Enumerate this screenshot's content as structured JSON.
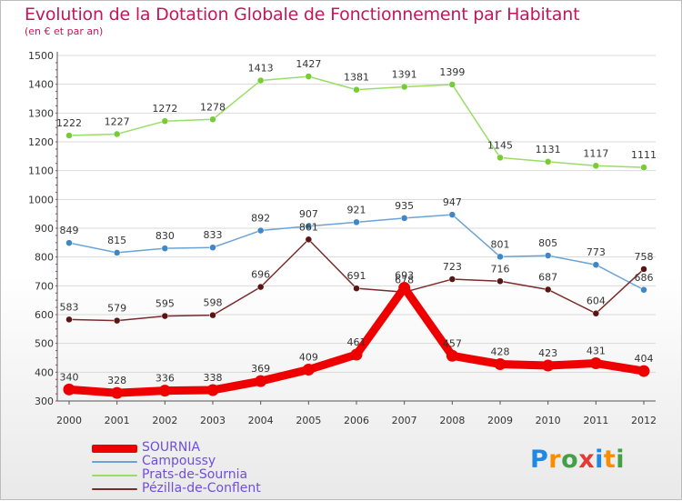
{
  "title": "Evolution de la Dotation Globale de Fonctionnement par Habitant",
  "subtitle": "(en € et par an)",
  "logo": {
    "text": "Proxiti",
    "letter_colors": [
      "#1e88e5",
      "#fb8c00",
      "#43a047",
      "#e53935",
      "#1e88e5",
      "#fb8c00",
      "#43a047"
    ]
  },
  "chart_data": {
    "type": "line",
    "title": "Evolution de la Dotation Globale de Fonctionnement par Habitant",
    "subtitle": "(en € et par an)",
    "xlabel": "",
    "ylabel": "",
    "x": [
      "2000",
      "2001",
      "2002",
      "2003",
      "2004",
      "2005",
      "2006",
      "2007",
      "2008",
      "2009",
      "2010",
      "2011",
      "2012"
    ],
    "ylim": [
      300,
      1500
    ],
    "yticks": [
      300,
      400,
      500,
      600,
      700,
      800,
      900,
      1000,
      1100,
      1200,
      1300,
      1400,
      1500
    ],
    "grid": true,
    "legend_position": "bottom-left",
    "series": [
      {
        "name": "Prats-de-Sournia",
        "color": "#99dd66",
        "marker_color": "#77cc33",
        "values": [
          1222,
          1227,
          1272,
          1278,
          1413,
          1427,
          1381,
          1391,
          1399,
          1145,
          1131,
          1117,
          1111
        ],
        "labels": [
          "1222",
          "1227",
          "1272",
          "1278",
          "1413",
          "1427",
          "1381",
          "1391",
          "1399",
          "1145",
          "1131",
          "1117",
          "1111"
        ]
      },
      {
        "name": "Campoussy",
        "color": "#6ba3d6",
        "marker_color": "#3f88c5",
        "values": [
          849,
          815,
          830,
          833,
          892,
          907,
          921,
          935,
          947,
          801,
          805,
          773,
          686
        ],
        "labels": [
          "849",
          "815",
          "830",
          "833",
          "892",
          "907",
          "921",
          "935",
          "947",
          "801",
          "805",
          "773",
          "686"
        ]
      },
      {
        "name": "Pézilla-de-Conflent",
        "color": "#7a2b2b",
        "marker_color": "#5a1414",
        "values": [
          583,
          579,
          595,
          598,
          696,
          861,
          691,
          678,
          723,
          716,
          687,
          604,
          758
        ],
        "labels": [
          "583",
          "579",
          "595",
          "598",
          "696",
          "861",
          "691",
          "678",
          "723",
          "716",
          "687",
          "604",
          "758"
        ]
      },
      {
        "name": "SOURNIA",
        "color": "#ee0000",
        "marker_color": "#ee0000",
        "values": [
          340,
          328,
          336,
          338,
          369,
          409,
          461,
          693,
          457,
          428,
          423,
          431,
          404
        ],
        "labels": [
          "340",
          "328",
          "336",
          "338",
          "369",
          "409",
          "461",
          "693",
          "457",
          "428",
          "423",
          "431",
          "404"
        ]
      }
    ],
    "legend": [
      {
        "name": "SOURNIA",
        "color": "#ee0000",
        "thick": true
      },
      {
        "name": "Campoussy",
        "color": "#6ba3d6",
        "thick": false
      },
      {
        "name": "Prats-de-Sournia",
        "color": "#99dd66",
        "thick": false
      },
      {
        "name": "Pézilla-de-Conflent",
        "color": "#7a2b2b",
        "thick": false
      }
    ]
  }
}
